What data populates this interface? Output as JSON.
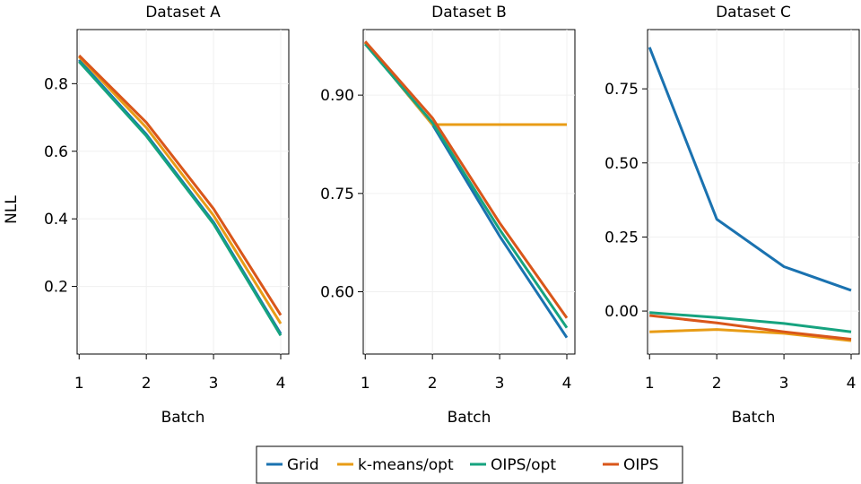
{
  "chart_data": [
    {
      "type": "line",
      "title": "Dataset A",
      "xlabel": "Batch",
      "ylabel": "NLL",
      "x": [
        1,
        2,
        3,
        4
      ],
      "xlim": [
        0.97,
        4.12
      ],
      "ylim": [
        0.0,
        0.96
      ],
      "yticks": [
        0.2,
        0.4,
        0.6,
        0.8
      ],
      "ytick_labels": [
        "0.2",
        "0.4",
        "0.6",
        "0.8"
      ],
      "xtick_labels": [
        "1",
        "2",
        "3",
        "4"
      ],
      "series": [
        {
          "name": "Grid",
          "values": [
            0.87,
            0.65,
            0.39,
            0.06
          ]
        },
        {
          "name": "k-means/opt",
          "values": [
            0.88,
            0.67,
            0.41,
            0.09
          ]
        },
        {
          "name": "OIPS/opt",
          "values": [
            0.865,
            0.645,
            0.385,
            0.055
          ]
        },
        {
          "name": "OIPS",
          "values": [
            0.883,
            0.685,
            0.43,
            0.115
          ]
        }
      ]
    },
    {
      "type": "line",
      "title": "Dataset B",
      "xlabel": "Batch",
      "ylabel": "",
      "x": [
        1,
        2,
        3,
        4
      ],
      "xlim": [
        0.97,
        4.12
      ],
      "ylim": [
        0.505,
        1.0
      ],
      "yticks": [
        0.6,
        0.75,
        0.9
      ],
      "ytick_labels": [
        "0.60",
        "0.75",
        "0.90"
      ],
      "xtick_labels": [
        "1",
        "2",
        "3",
        "4"
      ],
      "series": [
        {
          "name": "Grid",
          "values": [
            0.98,
            0.855,
            0.685,
            0.53
          ]
        },
        {
          "name": "k-means/opt",
          "values": [
            0.98,
            0.855,
            0.855,
            0.855
          ]
        },
        {
          "name": "OIPS/opt",
          "values": [
            0.978,
            0.858,
            0.695,
            0.545
          ]
        },
        {
          "name": "OIPS",
          "values": [
            0.982,
            0.865,
            0.705,
            0.56
          ]
        }
      ]
    },
    {
      "type": "line",
      "title": "Dataset C",
      "xlabel": "Batch",
      "ylabel": "",
      "x": [
        1,
        2,
        3,
        4
      ],
      "xlim": [
        0.97,
        4.12
      ],
      "ylim": [
        -0.145,
        0.95
      ],
      "yticks": [
        0.0,
        0.25,
        0.5,
        0.75
      ],
      "ytick_labels": [
        "0.00",
        "0.25",
        "0.50",
        "0.75"
      ],
      "xtick_labels": [
        "1",
        "2",
        "3",
        "4"
      ],
      "series": [
        {
          "name": "Grid",
          "values": [
            0.89,
            0.31,
            0.15,
            0.07
          ]
        },
        {
          "name": "k-means/opt",
          "values": [
            -0.07,
            -0.062,
            -0.075,
            -0.1
          ]
        },
        {
          "name": "OIPS/opt",
          "values": [
            -0.005,
            -0.022,
            -0.042,
            -0.07
          ]
        },
        {
          "name": "OIPS",
          "values": [
            -0.015,
            -0.04,
            -0.07,
            -0.095
          ]
        }
      ]
    }
  ],
  "legend": {
    "placement": "bottom-center",
    "entries": [
      {
        "name": "Grid",
        "color": "#1a72b0"
      },
      {
        "name": "k-means/opt",
        "color": "#e89c16"
      },
      {
        "name": "OIPS/opt",
        "color": "#16a37f"
      },
      {
        "name": "OIPS",
        "color": "#d9561a"
      }
    ]
  },
  "colors": {
    "Grid": "#1a72b0",
    "k-means/opt": "#e89c16",
    "OIPS/opt": "#16a37f",
    "OIPS": "#d9561a"
  }
}
